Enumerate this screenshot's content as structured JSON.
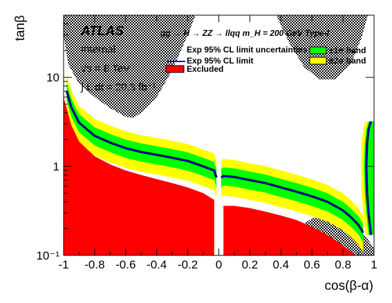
{
  "chart_data": {
    "type": "area",
    "xlabel": "cos(β-α)",
    "ylabel": "tanβ",
    "xlim": [
      -1,
      1
    ],
    "ylim": [
      0.1,
      50
    ],
    "y_scale": "log",
    "x_ticks": [
      "-1",
      "-0.8",
      "-0.6",
      "-0.4",
      "-0.2",
      "0",
      "0.2",
      "0.4",
      "0.6",
      "0.8",
      "1"
    ],
    "y_ticks": [
      "10⁻¹",
      "1",
      "10"
    ],
    "annotations": {
      "experiment": "ATLAS",
      "status": "Internal",
      "energy": "√s = 8 TeV",
      "luminosity": "∫ L dt = 20.3 fb⁻¹",
      "process": "gg → H → ZZ → llqq  m_H = 200 GeV Type-I"
    },
    "legend": {
      "exp_limit_bands": "Exp 95% CL limit uncertainties",
      "exp_limit": "Exp 95% CL limit",
      "excluded": "Excluded",
      "sigma1": "±1σ band",
      "sigma2": "±2σ band"
    },
    "colors": {
      "excluded": "#ff0000",
      "band_1sigma": "#00ff00",
      "band_2sigma": "#ffff00",
      "exp_line": "#0000ff",
      "obs_line": "#000000",
      "hatch": "#000000"
    },
    "series": [
      {
        "name": "Exp 95% CL limit",
        "segments": [
          {
            "x": [
              -0.98,
              -0.95,
              -0.9,
              -0.8,
              -0.7,
              -0.6,
              -0.5,
              -0.4,
              -0.3,
              -0.2,
              -0.1,
              -0.03,
              -0.015
            ],
            "y": [
              7.0,
              4.6,
              3.1,
              2.2,
              1.85,
              1.6,
              1.45,
              1.35,
              1.25,
              1.15,
              1.0,
              0.9,
              0.75
            ]
          },
          {
            "x": [
              0.015,
              0.03,
              0.1,
              0.2,
              0.3,
              0.4,
              0.5,
              0.6,
              0.7,
              0.8,
              0.85,
              0.9,
              0.93
            ],
            "y": [
              0.75,
              0.78,
              0.76,
              0.7,
              0.65,
              0.58,
              0.52,
              0.46,
              0.4,
              0.32,
              0.27,
              0.22,
              0.18
            ]
          },
          {
            "x": [
              0.98,
              0.965,
              0.955,
              0.95,
              0.955,
              0.965,
              0.98
            ],
            "y": [
              3.2,
              2.6,
              1.8,
              1.0,
              0.5,
              0.3,
              0.17
            ]
          }
        ]
      },
      {
        "name": "Excluded",
        "segments": [
          {
            "x": [
              -1.0,
              -0.95,
              -0.9,
              -0.8,
              -0.7,
              -0.6,
              -0.5,
              -0.4,
              -0.3,
              -0.2,
              -0.1,
              -0.03
            ],
            "y": [
              6.0,
              2.9,
              1.9,
              1.3,
              1.05,
              0.9,
              0.8,
              0.72,
              0.65,
              0.58,
              0.5,
              0.42
            ]
          },
          {
            "x": [
              0.03,
              0.1,
              0.2,
              0.3,
              0.4,
              0.5,
              0.6,
              0.7,
              0.8,
              0.88
            ],
            "y": [
              0.36,
              0.36,
              0.34,
              0.31,
              0.28,
              0.25,
              0.21,
              0.17,
              0.13,
              0.1
            ]
          }
        ]
      }
    ],
    "grid": false,
    "legend_placement": "top"
  }
}
